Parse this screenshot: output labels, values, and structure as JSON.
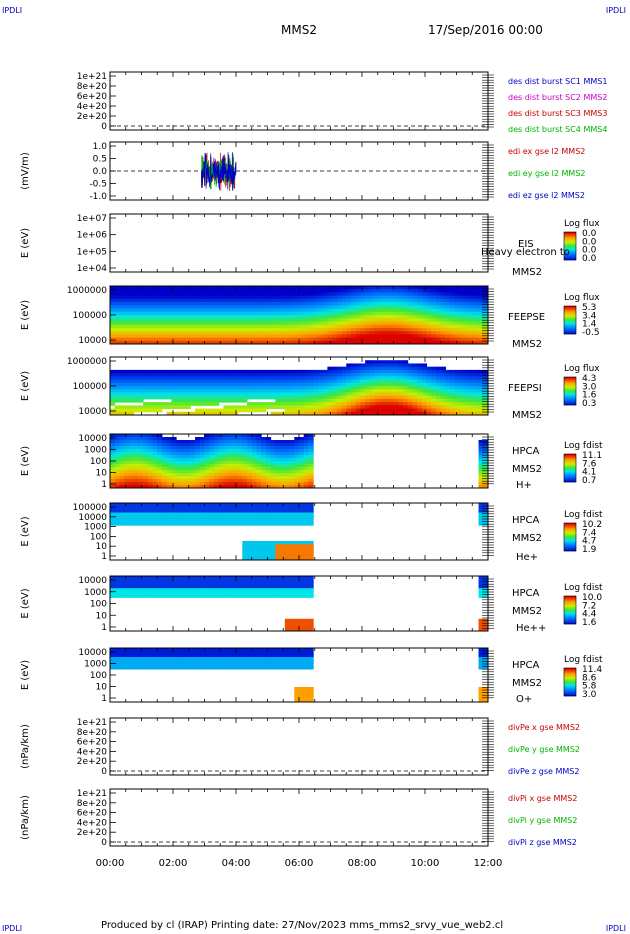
{
  "corners": {
    "tl": "IPDLI",
    "tr": "IPDLI",
    "bl": "IPDLI",
    "br": "IPDLI"
  },
  "header": {
    "spacecraft": "MMS2",
    "datetime": "17/Sep/2016 00:00"
  },
  "footer": {
    "text": "Produced by cl (IRAP)   Printing date: 27/Nov/2023   mms_mms2_srvy_vue_web2.cl"
  },
  "time_axis": {
    "ticks": [
      "00:00",
      "02:00",
      "04:00",
      "06:00",
      "08:00",
      "10:00",
      "12:00"
    ]
  },
  "chart_data": [
    {
      "type": "line",
      "id": "p1",
      "ylabel": "",
      "yticks": [
        "1e+21",
        "8e+20",
        "6e+20",
        "4e+20",
        "2e+20",
        "0"
      ],
      "series": [
        {
          "name": "des dist burst SC1 MMS1",
          "color": "#0000c8"
        },
        {
          "name": "des dist burst SC2 MMS2",
          "color": "#c800c8"
        },
        {
          "name": "des dist burst SC3 MMS3",
          "color": "#c80000"
        },
        {
          "name": "des dist burst SC4 MMS4",
          "color": "#00b400"
        }
      ]
    },
    {
      "type": "line",
      "id": "p2",
      "ylabel": "(mV/m)",
      "yticks": [
        "1.0",
        "0.5",
        "0.0",
        "-0.5",
        "-1.0"
      ],
      "ylim": [
        -1.0,
        1.0
      ],
      "xrange_hours": [
        2.9,
        4.0
      ],
      "series": [
        {
          "name": "edi ex gse l2 MMS2",
          "color": "#c80000"
        },
        {
          "name": "edi ey gse l2 MMS2",
          "color": "#00b400"
        },
        {
          "name": "edi ez gse l2 MMS2",
          "color": "#0000c8"
        }
      ]
    },
    {
      "type": "heatmap",
      "id": "p3",
      "ylabel": "E (eV)",
      "yticks": [
        "1e+07",
        "1e+06",
        "1e+05",
        "1e+04"
      ],
      "instrument": "EIS",
      "spacecraft": "MMS2",
      "species": "",
      "overlay_label": "Heavy electron to",
      "colorbar_title": "Log flux",
      "colorbar_ticks": [
        "0.0",
        "0.0",
        "0.0",
        "0.0"
      ]
    },
    {
      "type": "heatmap",
      "id": "p4",
      "ylabel": "E (eV)",
      "yticks": [
        "1000000",
        "100000",
        "10000"
      ],
      "instrument": "FEEPSE",
      "spacecraft": "MMS2",
      "species": "",
      "colorbar_title": "Log flux",
      "colorbar_ticks": [
        "5.3",
        "3.4",
        "1.4",
        "-0.5"
      ]
    },
    {
      "type": "heatmap",
      "id": "p5",
      "ylabel": "E (eV)",
      "yticks": [
        "1000000",
        "100000",
        "10000"
      ],
      "instrument": "FEEPSI",
      "spacecraft": "MMS2",
      "species": "",
      "colorbar_title": "Log flux",
      "colorbar_ticks": [
        "4.3",
        "3.0",
        "1.6",
        "0.3"
      ]
    },
    {
      "type": "heatmap",
      "id": "p6",
      "ylabel": "E (eV)",
      "yticks": [
        "10000",
        "1000",
        "100",
        "10",
        "1"
      ],
      "instrument": "HPCA",
      "spacecraft": "MMS2",
      "species": "H+",
      "colorbar_title": "Log fdist",
      "colorbar_ticks": [
        "11.1",
        "7.6",
        "4.1",
        "0.7"
      ],
      "data_gap_hours": [
        6.5,
        11.7
      ]
    },
    {
      "type": "heatmap",
      "id": "p7",
      "ylabel": "E (eV)",
      "yticks": [
        "100000",
        "10000",
        "1000",
        "100",
        "10",
        "1"
      ],
      "instrument": "HPCA",
      "spacecraft": "MMS2",
      "species": "He+",
      "colorbar_title": "Log fdist",
      "colorbar_ticks": [
        "10.2",
        "7.4",
        "4.7",
        "1.9"
      ],
      "data_gap_hours": [
        6.5,
        11.7
      ]
    },
    {
      "type": "heatmap",
      "id": "p8",
      "ylabel": "E (eV)",
      "yticks": [
        "10000",
        "1000",
        "100",
        "10",
        "1"
      ],
      "instrument": "HPCA",
      "spacecraft": "MMS2",
      "species": "He++",
      "colorbar_title": "Log fdist",
      "colorbar_ticks": [
        "10.0",
        "7.2",
        "4.4",
        "1.6"
      ],
      "data_gap_hours": [
        6.5,
        11.7
      ]
    },
    {
      "type": "heatmap",
      "id": "p9",
      "ylabel": "E (eV)",
      "yticks": [
        "10000",
        "1000",
        "100",
        "10",
        "1"
      ],
      "instrument": "HPCA",
      "spacecraft": "MMS2",
      "species": "O+",
      "colorbar_title": "Log fdist",
      "colorbar_ticks": [
        "11.4",
        "8.6",
        "5.8",
        "3.0"
      ],
      "data_gap_hours": [
        6.5,
        11.7
      ]
    },
    {
      "type": "line",
      "id": "p10",
      "ylabel": "(nPa/km)",
      "yticks": [
        "1e+21",
        "8e+20",
        "6e+20",
        "4e+20",
        "2e+20",
        "0"
      ],
      "series": [
        {
          "name": "divPe x gse MMS2",
          "color": "#c80000"
        },
        {
          "name": "divPe y gse MMS2",
          "color": "#00b400"
        },
        {
          "name": "divPe z gse MMS2",
          "color": "#0000c8"
        }
      ]
    },
    {
      "type": "line",
      "id": "p11",
      "ylabel": "(nPa/km)",
      "yticks": [
        "1e+21",
        "8e+20",
        "6e+20",
        "4e+20",
        "2e+20",
        "0"
      ],
      "series": [
        {
          "name": "divPi x gse MMS2",
          "color": "#c80000"
        },
        {
          "name": "divPi y gse MMS2",
          "color": "#00b400"
        },
        {
          "name": "divPi z gse MMS2",
          "color": "#0000c8"
        }
      ]
    }
  ]
}
